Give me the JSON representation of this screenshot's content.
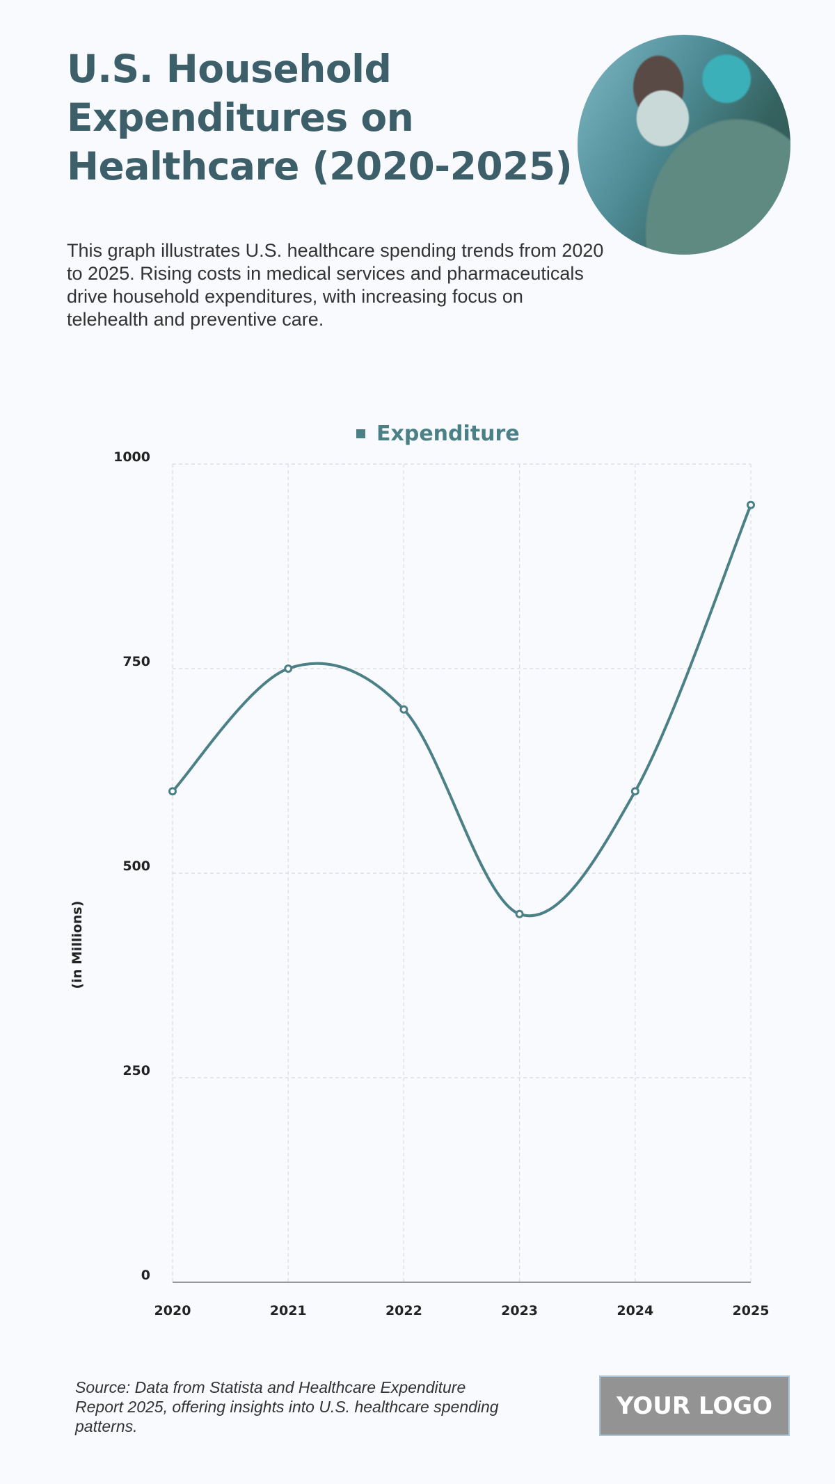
{
  "header": {
    "title": "U.S. Household Expenditures on Healthcare (2020-2025)",
    "description": "This graph illustrates U.S. healthcare spending trends from 2020 to 2025. Rising costs in medical services and pharmaceuticals drive household expenditures, with increasing focus on telehealth and preventive care.",
    "image": "surgeon-photo"
  },
  "footer": {
    "source": "Source: Data from Statista and Healthcare Expenditure Report 2025, offering insights into U.S. healthcare spending patterns.",
    "logo": "YOUR LOGO"
  },
  "colors": {
    "series": "#4a8086",
    "title": "#3d5f6a",
    "background": "#f9fafe"
  },
  "chart_data": {
    "type": "line",
    "title": "U.S. Household Expenditures on Healthcare (2020-2025)",
    "xlabel": "",
    "ylabel": "(in Millions)",
    "categories": [
      "2020",
      "2021",
      "2022",
      "2023",
      "2024",
      "2025"
    ],
    "series": [
      {
        "name": "Expenditure",
        "values": [
          600,
          750,
          700,
          450,
          600,
          950
        ]
      }
    ],
    "yticks": [
      "0",
      "250",
      "500",
      "750",
      "1000"
    ],
    "ylim": [
      0,
      1000
    ],
    "grid": true,
    "legend_position": "top",
    "smooth": true
  }
}
